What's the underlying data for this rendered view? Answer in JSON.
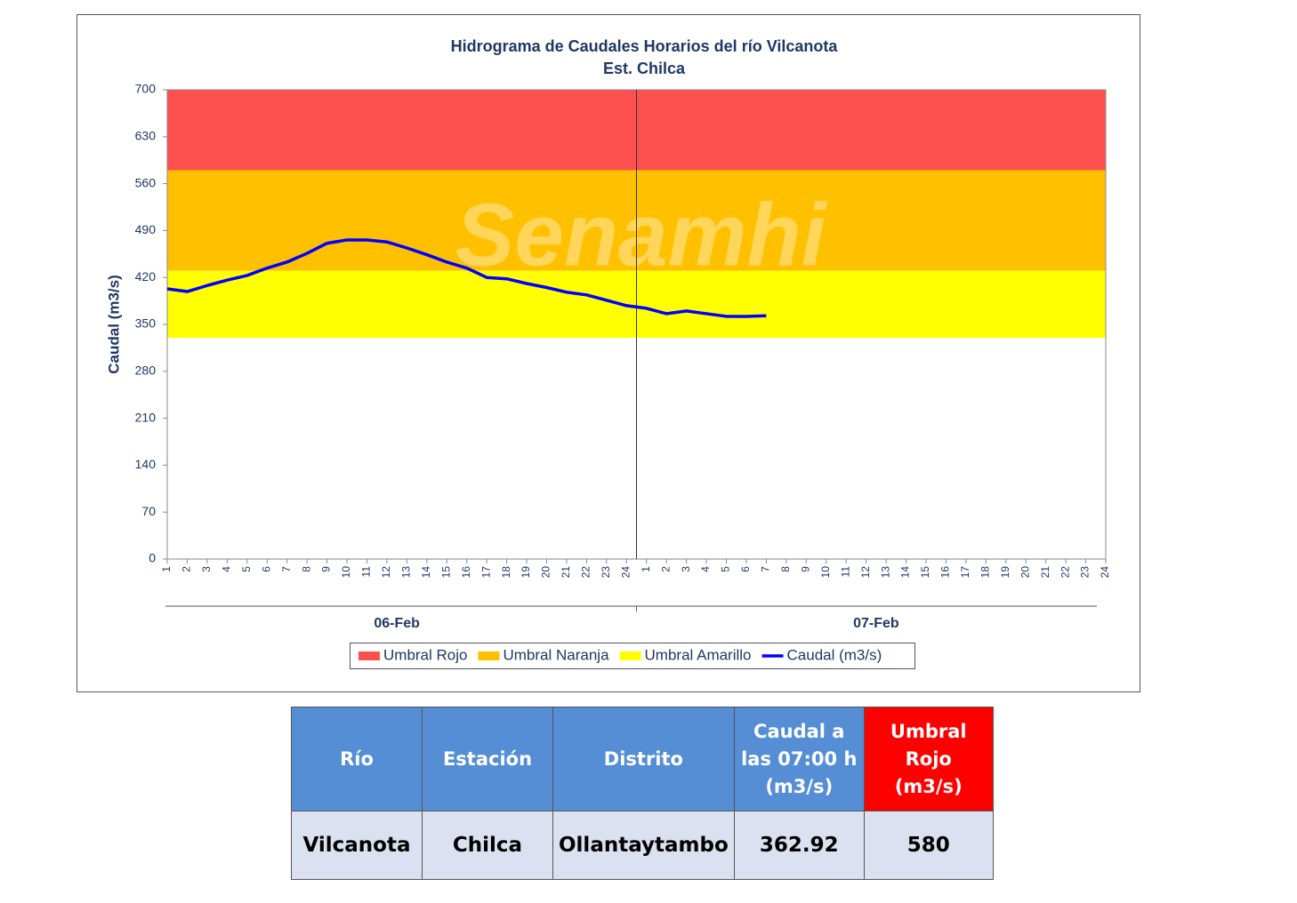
{
  "chart_data": {
    "type": "line",
    "title": "Hidrograma  de Caudales Horarios  del río Vilcanota",
    "subtitle": "Est. Chilca",
    "watermark": "Senamhi",
    "y_label": "Caudal (m3/s)",
    "ylim": [
      0,
      700
    ],
    "yticks": [
      0,
      70,
      140,
      210,
      280,
      350,
      420,
      490,
      560,
      630,
      700
    ],
    "categories": [
      1,
      2,
      3,
      4,
      5,
      6,
      7,
      8,
      9,
      10,
      11,
      12,
      13,
      14,
      15,
      16,
      17,
      18,
      19,
      20,
      21,
      22,
      23,
      24,
      1,
      2,
      3,
      4,
      5,
      6,
      7,
      8,
      9,
      10,
      11,
      12,
      13,
      14,
      15,
      16,
      17,
      18,
      19,
      20,
      21,
      22,
      23,
      24
    ],
    "groups": [
      "06-Feb",
      "07-Feb"
    ],
    "bands": [
      {
        "name": "Umbral Rojo",
        "color": "#ff5050",
        "from": 580,
        "to": 700
      },
      {
        "name": "Umbral Naranja",
        "color": "#ffc000",
        "from": 430,
        "to": 580
      },
      {
        "name": "Umbral Amarillo",
        "color": "#ffff00",
        "from": 330,
        "to": 430
      }
    ],
    "series": [
      {
        "name": "Caudal (m3/s)",
        "color": "#0000ff",
        "values": [
          403,
          399,
          408,
          416,
          423,
          434,
          443,
          456,
          471,
          476,
          476,
          473,
          464,
          454,
          443,
          434,
          420,
          418,
          411,
          405,
          398,
          394,
          386,
          378,
          374,
          366,
          370,
          366,
          362,
          362,
          363,
          null,
          null,
          null,
          null,
          null,
          null,
          null,
          null,
          null,
          null,
          null,
          null,
          null,
          null,
          null,
          null,
          null
        ]
      }
    ]
  },
  "table": {
    "header": [
      "Río",
      "Estación",
      "Distrito",
      "Caudal a las 07:00 h (m3/s)",
      "Umbral Rojo (m3/s)"
    ],
    "rows": [
      [
        "Vilcanota",
        "Chilca",
        "Ollantaytambo",
        362.92,
        580
      ]
    ]
  }
}
